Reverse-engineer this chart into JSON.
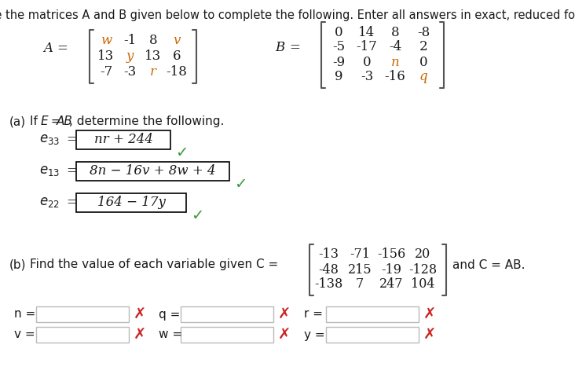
{
  "title": "Use the matrices A and B given below to complete the following. Enter all answers in exact, reduced form.",
  "matrix_A": [
    [
      "w",
      "-1",
      "8",
      "v"
    ],
    [
      "13",
      "y",
      "13",
      "6"
    ],
    [
      "-7",
      "-3",
      "r",
      "-18"
    ]
  ],
  "matrix_B": [
    [
      "0",
      "14",
      "8",
      "-8"
    ],
    [
      "-5",
      "-17",
      "-4",
      "2"
    ],
    [
      "-9",
      "0",
      "n",
      "0"
    ],
    [
      "9",
      "-3",
      "-16",
      "q"
    ]
  ],
  "matrix_C": [
    [
      "-13",
      "-71",
      "-156",
      "20"
    ],
    [
      "-48",
      "215",
      "-19",
      "-128"
    ],
    [
      "-138",
      "7",
      "247",
      "104"
    ]
  ],
  "var_A": [
    "w",
    "v",
    "y",
    "r"
  ],
  "var_B": [
    "n",
    "q"
  ],
  "e33_value": "nr + 244",
  "e13_value": "8n − 16v + 8w + 4",
  "e22_value": "164 − 17y",
  "bg_color": "#ffffff",
  "text_color": "#1a1a1a",
  "orange_color": "#cc6600",
  "green_color": "#3a9a3a",
  "red_color": "#cc2222"
}
